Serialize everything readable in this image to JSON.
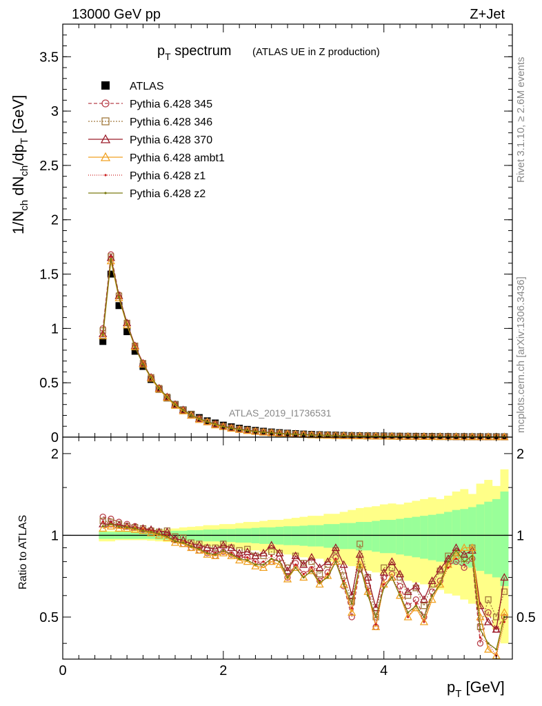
{
  "header": {
    "left": "13000 GeV pp",
    "right": "Z+Jet"
  },
  "title": {
    "main_base": "p",
    "main_sub": "T",
    "main_rest": " spectrum",
    "paren": "(ATLAS UE in Z production)"
  },
  "side_text": {
    "rivet": "Rivet 3.1.10, ≥ 2.6M events",
    "mcplots": "mcplots.cern.ch [arXiv:1306.3436]"
  },
  "watermark": "ATLAS_2019_I1736531",
  "colors": {
    "data": "#000000",
    "p345": "#b8404a",
    "p346": "#a0783c",
    "p370": "#9a1a28",
    "ambt1": "#f0a020",
    "z1": "#cc2020",
    "z2": "#7a7a10",
    "band_inner": "#99ff99",
    "band_outer": "#ffff88"
  },
  "chart_data": [
    {
      "type": "scatter",
      "panel": "main",
      "ylabel": "1/N_ch dN_ch/dp_T [GeV]",
      "ylim": [
        0,
        3.8
      ],
      "xlim": [
        0,
        5.6
      ],
      "yticks": [
        "0",
        "0.5",
        "1",
        "1.5",
        "2",
        "2.5",
        "3",
        "3.5"
      ],
      "legend_placement": "top-left",
      "x": [
        0.5,
        0.6,
        0.7,
        0.8,
        0.9,
        1.0,
        1.1,
        1.2,
        1.3,
        1.4,
        1.5,
        1.6,
        1.7,
        1.8,
        1.9,
        2.0,
        2.1,
        2.2,
        2.3,
        2.4,
        2.5,
        2.6,
        2.7,
        2.8,
        2.9,
        3.0,
        3.1,
        3.2,
        3.3,
        3.4,
        3.5,
        3.6,
        3.7,
        3.8,
        3.9,
        4.0,
        4.1,
        4.2,
        4.3,
        4.4,
        4.5,
        4.6,
        4.7,
        4.8,
        4.9,
        5.0,
        5.1,
        5.2,
        5.3,
        5.4,
        5.5
      ],
      "series": [
        {
          "name": "ATLAS",
          "marker": "square",
          "values": [
            0.88,
            1.5,
            1.21,
            0.97,
            0.79,
            0.65,
            0.53,
            0.44,
            0.36,
            0.3,
            0.25,
            0.21,
            0.18,
            0.15,
            0.13,
            0.11,
            0.095,
            0.082,
            0.071,
            0.062,
            0.054,
            0.047,
            0.041,
            0.036,
            0.032,
            0.028,
            0.025,
            0.022,
            0.02,
            0.018,
            0.016,
            0.014,
            0.013,
            0.012,
            0.011,
            0.01,
            0.009,
            0.008,
            0.0075,
            0.007,
            0.0065,
            0.006,
            0.0055,
            0.005,
            0.0046,
            0.0042,
            0.0039,
            0.0036,
            0.0033,
            0.003,
            0.0028
          ]
        },
        {
          "name": "Pythia 6.428 345",
          "marker": "circle",
          "values": [
            1.0,
            1.68,
            1.31,
            1.05,
            0.84,
            0.68,
            0.55,
            0.45,
            0.37,
            0.3,
            0.25,
            0.2,
            0.17,
            0.14,
            0.12,
            0.1,
            0.085,
            0.073,
            0.063,
            0.054,
            0.047,
            0.041,
            0.036,
            0.031,
            0.027,
            0.024,
            0.021,
            0.019,
            0.017,
            0.015,
            0.013,
            0.012,
            0.011,
            0.01,
            0.009,
            0.008,
            0.0074,
            0.0067,
            0.0061,
            0.0055,
            0.005,
            0.0046,
            0.0042,
            0.0038,
            0.0035,
            0.0032,
            0.003,
            0.0027,
            0.0025,
            0.0023,
            0.0021
          ]
        },
        {
          "name": "Pythia 6.428 346",
          "marker": "square-open",
          "values": [
            0.98,
            1.66,
            1.3,
            1.05,
            0.84,
            0.68,
            0.55,
            0.45,
            0.37,
            0.3,
            0.25,
            0.21,
            0.17,
            0.14,
            0.12,
            0.1,
            0.086,
            0.074,
            0.064,
            0.055,
            0.048,
            0.042,
            0.036,
            0.032,
            0.028,
            0.024,
            0.021,
            0.019,
            0.017,
            0.015,
            0.013,
            0.012,
            0.011,
            0.01,
            0.009,
            0.0082,
            0.0075,
            0.0068,
            0.0062,
            0.0056,
            0.0051,
            0.0047,
            0.0043,
            0.0039,
            0.0036,
            0.0033,
            0.003,
            0.0028,
            0.0026,
            0.0024,
            0.0022
          ]
        },
        {
          "name": "Pythia 6.428 370",
          "marker": "triangle-open",
          "values": [
            0.95,
            1.65,
            1.3,
            1.05,
            0.84,
            0.68,
            0.55,
            0.45,
            0.37,
            0.3,
            0.25,
            0.2,
            0.17,
            0.14,
            0.12,
            0.1,
            0.085,
            0.073,
            0.063,
            0.054,
            0.047,
            0.041,
            0.036,
            0.031,
            0.027,
            0.024,
            0.021,
            0.019,
            0.017,
            0.015,
            0.013,
            0.012,
            0.011,
            0.01,
            0.009,
            0.008,
            0.0074,
            0.0067,
            0.0061,
            0.0055,
            0.005,
            0.0046,
            0.0042,
            0.0038,
            0.0035,
            0.0032,
            0.003,
            0.0027,
            0.0025,
            0.0023,
            0.0021
          ]
        },
        {
          "name": "Pythia 6.428 ambt1",
          "marker": "triangle-open",
          "values": [
            0.93,
            1.62,
            1.28,
            1.03,
            0.83,
            0.67,
            0.54,
            0.44,
            0.36,
            0.29,
            0.24,
            0.2,
            0.16,
            0.14,
            0.11,
            0.095,
            0.08,
            0.069,
            0.059,
            0.051,
            0.044,
            0.038,
            0.033,
            0.029,
            0.025,
            0.022,
            0.019,
            0.017,
            0.015,
            0.013,
            0.012,
            0.011,
            0.0098,
            0.0088,
            0.008,
            0.0072,
            0.0066,
            0.006,
            0.0054,
            0.0049,
            0.0045,
            0.0041,
            0.0037,
            0.0034,
            0.0031,
            0.0029,
            0.0026,
            0.0024,
            0.0022,
            0.002,
            0.0019
          ]
        },
        {
          "name": "Pythia 6.428 z1",
          "marker": "dot",
          "values": [
            0.96,
            1.66,
            1.3,
            1.04,
            0.84,
            0.68,
            0.55,
            0.45,
            0.37,
            0.3,
            0.25,
            0.2,
            0.17,
            0.14,
            0.12,
            0.1,
            0.084,
            0.072,
            0.062,
            0.053,
            0.046,
            0.04,
            0.035,
            0.03,
            0.026,
            0.023,
            0.02,
            0.018,
            0.016,
            0.014,
            0.012,
            0.011,
            0.01,
            0.0093,
            0.0084,
            0.0076,
            0.0069,
            0.0063,
            0.0057,
            0.0052,
            0.0047,
            0.0043,
            0.0039,
            0.0036,
            0.0033,
            0.003,
            0.0028,
            0.0025,
            0.0023,
            0.0021,
            0.002
          ]
        },
        {
          "name": "Pythia 6.428 z2",
          "marker": "dot",
          "values": [
            0.94,
            1.64,
            1.29,
            1.04,
            0.83,
            0.67,
            0.55,
            0.45,
            0.37,
            0.3,
            0.25,
            0.2,
            0.17,
            0.14,
            0.12,
            0.098,
            0.083,
            0.071,
            0.061,
            0.052,
            0.045,
            0.039,
            0.034,
            0.03,
            0.026,
            0.023,
            0.02,
            0.018,
            0.016,
            0.014,
            0.012,
            0.011,
            0.01,
            0.0092,
            0.0083,
            0.0075,
            0.0068,
            0.0062,
            0.0056,
            0.0051,
            0.0046,
            0.0042,
            0.0038,
            0.0035,
            0.0032,
            0.0029,
            0.0027,
            0.0025,
            0.0023,
            0.0021,
            0.0019
          ]
        }
      ]
    },
    {
      "type": "line",
      "panel": "ratio",
      "ylabel": "Ratio to ATLAS",
      "xlabel": "p_T [GeV]",
      "ylim": [
        0.35,
        2.3
      ],
      "xlim": [
        0,
        5.6
      ],
      "xticks": [
        "0",
        "2",
        "4"
      ],
      "yticks": [
        "0.5",
        "1",
        "2"
      ],
      "log_y": true,
      "bands": {
        "x_edges": [
          0.45,
          0.55,
          0.65,
          0.75,
          0.85,
          0.95,
          1.05,
          1.15,
          1.25,
          1.35,
          1.45,
          1.55,
          1.65,
          1.75,
          1.85,
          1.95,
          2.05,
          2.15,
          2.25,
          2.35,
          2.45,
          2.55,
          2.65,
          2.75,
          2.85,
          2.95,
          3.05,
          3.15,
          3.25,
          3.35,
          3.45,
          3.55,
          3.65,
          3.75,
          3.85,
          3.95,
          4.05,
          4.15,
          4.25,
          4.35,
          4.45,
          4.55,
          4.65,
          4.75,
          4.85,
          4.95,
          5.05,
          5.15,
          5.25,
          5.35,
          5.45,
          5.55
        ],
        "inner_up": [
          1.03,
          1.03,
          1.03,
          1.03,
          1.03,
          1.03,
          1.03,
          1.035,
          1.035,
          1.04,
          1.04,
          1.045,
          1.045,
          1.05,
          1.05,
          1.055,
          1.055,
          1.06,
          1.06,
          1.065,
          1.07,
          1.07,
          1.075,
          1.08,
          1.08,
          1.085,
          1.09,
          1.09,
          1.1,
          1.1,
          1.11,
          1.11,
          1.12,
          1.12,
          1.13,
          1.14,
          1.14,
          1.15,
          1.16,
          1.17,
          1.18,
          1.19,
          1.2,
          1.22,
          1.24,
          1.25,
          1.27,
          1.3,
          1.33,
          1.36,
          1.45
        ],
        "inner_dn": [
          0.97,
          0.97,
          0.97,
          0.97,
          0.97,
          0.97,
          0.97,
          0.965,
          0.965,
          0.96,
          0.96,
          0.955,
          0.955,
          0.95,
          0.95,
          0.945,
          0.945,
          0.94,
          0.94,
          0.935,
          0.93,
          0.93,
          0.925,
          0.92,
          0.92,
          0.915,
          0.91,
          0.91,
          0.9,
          0.9,
          0.89,
          0.89,
          0.88,
          0.88,
          0.87,
          0.86,
          0.86,
          0.85,
          0.84,
          0.83,
          0.82,
          0.81,
          0.8,
          0.79,
          0.78,
          0.77,
          0.76,
          0.74,
          0.72,
          0.7,
          0.65
        ],
        "outer_up": [
          1.04,
          1.04,
          1.04,
          1.04,
          1.04,
          1.04,
          1.045,
          1.05,
          1.055,
          1.06,
          1.07,
          1.075,
          1.08,
          1.09,
          1.09,
          1.1,
          1.1,
          1.11,
          1.12,
          1.12,
          1.13,
          1.14,
          1.14,
          1.15,
          1.16,
          1.17,
          1.18,
          1.18,
          1.2,
          1.2,
          1.22,
          1.24,
          1.26,
          1.27,
          1.28,
          1.3,
          1.31,
          1.3,
          1.32,
          1.34,
          1.36,
          1.38,
          1.36,
          1.4,
          1.45,
          1.48,
          1.42,
          1.55,
          1.6,
          1.52,
          1.75
        ],
        "outer_dn": [
          0.95,
          0.95,
          0.96,
          0.96,
          0.96,
          0.96,
          0.955,
          0.95,
          0.945,
          0.94,
          0.93,
          0.925,
          0.92,
          0.91,
          0.91,
          0.9,
          0.9,
          0.89,
          0.88,
          0.88,
          0.87,
          0.86,
          0.86,
          0.85,
          0.84,
          0.83,
          0.82,
          0.82,
          0.8,
          0.8,
          0.78,
          0.77,
          0.75,
          0.74,
          0.73,
          0.72,
          0.71,
          0.7,
          0.68,
          0.67,
          0.66,
          0.64,
          0.63,
          0.61,
          0.6,
          0.58,
          0.56,
          0.54,
          0.5,
          0.45,
          0.4
        ]
      },
      "series": [
        {
          "name": "Pythia 6.428 345",
          "values": [
            1.17,
            1.15,
            1.12,
            1.1,
            1.08,
            1.05,
            1.04,
            1.02,
            1.0,
            0.96,
            0.93,
            0.9,
            0.88,
            0.86,
            0.84,
            0.87,
            0.85,
            0.83,
            0.83,
            0.8,
            0.78,
            0.8,
            0.82,
            0.7,
            0.79,
            0.72,
            0.75,
            0.68,
            0.73,
            0.83,
            0.65,
            0.5,
            0.75,
            0.65,
            0.46,
            0.7,
            0.72,
            0.65,
            0.55,
            0.58,
            0.5,
            0.62,
            0.68,
            0.78,
            0.8,
            0.76,
            0.82,
            0.4,
            0.52,
            0.45,
            0.5
          ]
        },
        {
          "name": "Pythia 6.428 346",
          "values": [
            1.13,
            1.12,
            1.1,
            1.08,
            1.07,
            1.06,
            1.04,
            1.03,
            1.04,
            0.99,
            0.98,
            0.94,
            0.93,
            0.9,
            0.9,
            0.93,
            0.9,
            0.88,
            0.89,
            0.84,
            0.84,
            0.87,
            0.86,
            0.76,
            0.84,
            0.79,
            0.8,
            0.72,
            0.78,
            0.88,
            0.71,
            0.57,
            0.93,
            0.7,
            0.5,
            0.76,
            0.76,
            0.7,
            0.6,
            0.64,
            0.55,
            0.66,
            0.74,
            0.84,
            0.86,
            0.82,
            0.9,
            0.46,
            0.58,
            0.5,
            0.62
          ]
        },
        {
          "name": "Pythia 6.428 370",
          "values": [
            1.1,
            1.1,
            1.09,
            1.08,
            1.07,
            1.06,
            1.05,
            1.03,
            1.03,
            0.97,
            0.96,
            0.93,
            0.92,
            0.9,
            0.89,
            0.92,
            0.9,
            0.86,
            0.87,
            0.84,
            0.86,
            0.92,
            0.86,
            0.74,
            0.84,
            0.78,
            0.83,
            0.76,
            0.8,
            0.9,
            0.78,
            0.6,
            0.85,
            0.7,
            0.54,
            0.73,
            0.8,
            0.72,
            0.62,
            0.65,
            0.58,
            0.68,
            0.75,
            0.82,
            0.9,
            0.85,
            0.88,
            0.55,
            0.48,
            0.45,
            0.7
          ]
        },
        {
          "name": "Pythia 6.428 ambt1",
          "values": [
            1.06,
            1.08,
            1.06,
            1.06,
            1.05,
            1.04,
            1.02,
            1.0,
            0.98,
            0.94,
            0.93,
            0.9,
            0.88,
            0.85,
            0.84,
            0.86,
            0.84,
            0.81,
            0.8,
            0.77,
            0.76,
            0.8,
            0.78,
            0.69,
            0.76,
            0.7,
            0.74,
            0.66,
            0.71,
            0.8,
            0.66,
            0.52,
            0.78,
            0.62,
            0.46,
            0.66,
            0.7,
            0.6,
            0.5,
            0.54,
            0.48,
            0.58,
            0.66,
            0.78,
            0.84,
            0.9,
            0.9,
            0.5,
            0.38,
            0.36,
            0.52
          ]
        },
        {
          "name": "Pythia 6.428 z1",
          "values": [
            1.12,
            1.11,
            1.09,
            1.07,
            1.06,
            1.05,
            1.04,
            1.01,
            1.0,
            0.95,
            0.94,
            0.91,
            0.9,
            0.87,
            0.86,
            0.88,
            0.86,
            0.83,
            0.83,
            0.8,
            0.8,
            0.84,
            0.8,
            0.7,
            0.78,
            0.72,
            0.76,
            0.68,
            0.72,
            0.82,
            0.68,
            0.54,
            0.78,
            0.63,
            0.47,
            0.66,
            0.7,
            0.62,
            0.5,
            0.56,
            0.48,
            0.6,
            0.66,
            0.76,
            0.82,
            0.78,
            0.82,
            0.42,
            0.4,
            0.36,
            0.48
          ]
        },
        {
          "name": "Pythia 6.428 z2",
          "values": [
            1.08,
            1.1,
            1.08,
            1.07,
            1.06,
            1.04,
            1.03,
            1.01,
            0.99,
            0.95,
            0.94,
            0.91,
            0.89,
            0.86,
            0.85,
            0.88,
            0.85,
            0.82,
            0.81,
            0.78,
            0.78,
            0.82,
            0.8,
            0.7,
            0.76,
            0.7,
            0.74,
            0.67,
            0.7,
            0.8,
            0.66,
            0.56,
            0.78,
            0.6,
            0.5,
            0.64,
            0.7,
            0.6,
            0.52,
            0.55,
            0.5,
            0.6,
            0.66,
            0.8,
            0.88,
            0.8,
            0.84,
            0.45,
            0.4,
            0.38,
            0.5
          ]
        }
      ]
    }
  ]
}
